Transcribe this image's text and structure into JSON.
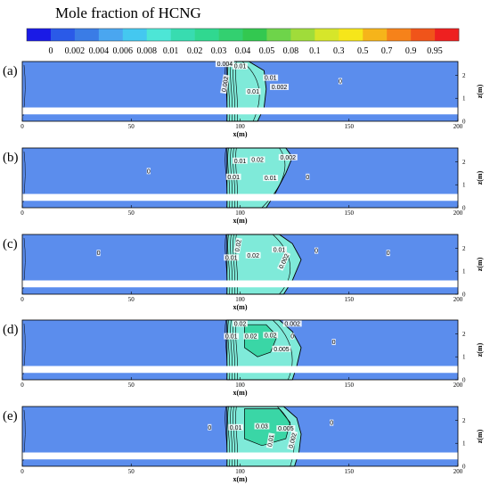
{
  "chart_data": {
    "type": "heatmap",
    "title": "Mole fraction of HCNG",
    "colorbar": {
      "levels": [
        "0",
        "0.002",
        "0.004",
        "0.006",
        "0.008",
        "0.01",
        "0.02",
        "0.03",
        "0.04",
        "0.05",
        "0.08",
        "0.1",
        "0.3",
        "0.5",
        "0.7",
        "0.9",
        "0.95"
      ],
      "colors": [
        "#1a1ae6",
        "#2a5ae8",
        "#3a7ce6",
        "#4aa6f0",
        "#44c8f0",
        "#4de6d6",
        "#38dcb0",
        "#30d890",
        "#33d070",
        "#33c850",
        "#6ed44a",
        "#a0dc3a",
        "#d6e62a",
        "#f6e61a",
        "#f6b41a",
        "#f6821a",
        "#f0541a",
        "#ee2020"
      ]
    },
    "background_color": "#5b8ded",
    "plume_color": "#7fead9",
    "high_color": "#3ad6a6",
    "x_axis": {
      "label": "x(m)",
      "ticks": [
        0,
        50,
        100,
        150,
        200
      ],
      "range": [
        0,
        200
      ]
    },
    "z_axis": {
      "label": "z(m)",
      "ticks": [
        0,
        1,
        2
      ],
      "range": [
        0,
        2.6
      ]
    },
    "panels": [
      {
        "label": "(a)",
        "plume": [
          [
            94,
            2.6
          ],
          [
            104,
            2.6
          ],
          [
            111,
            2.2
          ],
          [
            112,
            1.4
          ],
          [
            111,
            0.6
          ],
          [
            108,
            0
          ]
        ],
        "core": null,
        "contours": [
          {
            "text": "0.004",
            "x": 93,
            "z": 2.4
          },
          {
            "text": "0.01",
            "x": 100,
            "z": 2.3
          },
          {
            "text": "0.002",
            "x": 94,
            "z": 1.6,
            "rotate": -80
          },
          {
            "text": "0.01",
            "x": 106,
            "z": 1.2
          },
          {
            "text": "0.01",
            "x": 114,
            "z": 1.8
          },
          {
            "text": "0.002",
            "x": 118,
            "z": 1.4
          },
          {
            "text": "0",
            "x": 146,
            "z": 1.65
          }
        ]
      },
      {
        "label": "(b)",
        "plume": [
          [
            94,
            2.6
          ],
          [
            121,
            2.6
          ],
          [
            124,
            2.2
          ],
          [
            121,
            1.5
          ],
          [
            116,
            0.6
          ],
          [
            112,
            0
          ]
        ],
        "core": null,
        "contours": [
          {
            "text": "0.01",
            "x": 100,
            "z": 1.95
          },
          {
            "text": "0.02",
            "x": 108,
            "z": 2.0
          },
          {
            "text": "0.002",
            "x": 122,
            "z": 2.1
          },
          {
            "text": "0",
            "x": 58,
            "z": 1.5
          },
          {
            "text": "0.01",
            "x": 97,
            "z": 1.25
          },
          {
            "text": "0.01",
            "x": 114,
            "z": 1.2
          },
          {
            "text": "0",
            "x": 131,
            "z": 1.25
          }
        ]
      },
      {
        "label": "(c)",
        "plume": [
          [
            94,
            2.6
          ],
          [
            118,
            2.6
          ],
          [
            124,
            2.2
          ],
          [
            128,
            1.5
          ],
          [
            124,
            0.6
          ],
          [
            120,
            0
          ]
        ],
        "core": null,
        "contours": [
          {
            "text": "0.02",
            "x": 100,
            "z": 2.1,
            "rotate": -80
          },
          {
            "text": "0.01",
            "x": 118,
            "z": 1.85
          },
          {
            "text": "0.02",
            "x": 106,
            "z": 1.6
          },
          {
            "text": "0.002",
            "x": 121,
            "z": 1.4,
            "rotate": -65
          },
          {
            "text": "0",
            "x": 135,
            "z": 1.8
          },
          {
            "text": "0",
            "x": 168,
            "z": 1.7
          },
          {
            "text": "0",
            "x": 35,
            "z": 1.7
          },
          {
            "text": "0.01",
            "x": 96,
            "z": 1.5
          }
        ]
      },
      {
        "label": "(d)",
        "plume": [
          [
            94,
            2.6
          ],
          [
            118,
            2.6
          ],
          [
            124,
            2.1
          ],
          [
            128,
            1.4
          ],
          [
            126,
            0.6
          ],
          [
            124,
            0
          ]
        ],
        "core": [
          [
            102,
            2.4
          ],
          [
            112,
            2.4
          ],
          [
            117,
            1.9
          ],
          [
            114,
            1.2
          ],
          [
            108,
            1.0
          ],
          [
            102,
            1.4
          ]
        ],
        "contours": [
          {
            "text": "0.02",
            "x": 100,
            "z": 2.35
          },
          {
            "text": "0.002",
            "x": 124,
            "z": 2.35
          },
          {
            "text": "0.01",
            "x": 96,
            "z": 1.8
          },
          {
            "text": "0.02",
            "x": 105,
            "z": 1.8
          },
          {
            "text": "0.02",
            "x": 114,
            "z": 1.85
          },
          {
            "text": "0",
            "x": 124,
            "z": 1.8
          },
          {
            "text": "0.005",
            "x": 119,
            "z": 1.25
          },
          {
            "text": "0",
            "x": 143,
            "z": 1.55
          }
        ]
      },
      {
        "label": "(e)",
        "plume": [
          [
            94,
            2.6
          ],
          [
            120,
            2.6
          ],
          [
            126,
            2.1
          ],
          [
            128,
            1.4
          ],
          [
            127,
            0.6
          ],
          [
            125,
            0
          ]
        ],
        "core": [
          [
            102,
            2.5
          ],
          [
            118,
            2.5
          ],
          [
            123,
            1.9
          ],
          [
            121,
            1.2
          ],
          [
            110,
            0.9
          ],
          [
            102,
            1.2
          ]
        ],
        "contours": [
          {
            "text": "0",
            "x": 86,
            "z": 1.6
          },
          {
            "text": "0.01",
            "x": 98,
            "z": 1.6
          },
          {
            "text": "0.03",
            "x": 110,
            "z": 1.65
          },
          {
            "text": "0.005",
            "x": 121,
            "z": 1.55
          },
          {
            "text": "0.002",
            "x": 125,
            "z": 1.1,
            "rotate": -75
          },
          {
            "text": "0.01",
            "x": 115,
            "z": 1.1,
            "rotate": -80
          },
          {
            "text": "0",
            "x": 142,
            "z": 1.8
          }
        ]
      }
    ]
  }
}
